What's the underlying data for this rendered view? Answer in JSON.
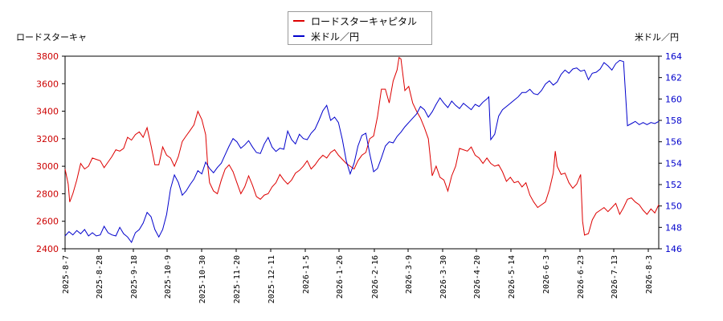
{
  "chart_data": {
    "type": "line",
    "left_axis_label": "ロードスターキャ",
    "right_axis_label": "米ドル／円",
    "x_tick_labels": [
      "2025-8-7",
      "2025-8-28",
      "2025-9-18",
      "2025-10-9",
      "2025-10-30",
      "2025-11-20",
      "2025-12-11",
      "2026-1-5",
      "2026-1-26",
      "2026-2-16",
      "2026-3-9",
      "2026-3-30",
      "2026-4-20",
      "2026-5-14",
      "2026-6-3",
      "2026-6-23",
      "2026-7-13",
      "2026-8-3"
    ],
    "y_left": {
      "min": 2400,
      "max": 3800,
      "ticks": [
        2400,
        2600,
        2800,
        3000,
        3200,
        3400,
        3600,
        3800
      ]
    },
    "y_right": {
      "min": 146,
      "max": 164,
      "ticks": [
        146,
        148,
        150,
        152,
        154,
        156,
        158,
        160,
        162,
        164
      ]
    },
    "legend_placement": "top-center",
    "grid": false,
    "series": [
      {
        "name": "ロードスターキャピタル",
        "axis": "left",
        "color": "#dd0000",
        "points": [
          [
            0,
            2980
          ],
          [
            0.8,
            2870
          ],
          [
            1.2,
            2740
          ],
          [
            2,
            2800
          ],
          [
            3,
            2900
          ],
          [
            4,
            3020
          ],
          [
            5,
            2980
          ],
          [
            6,
            3000
          ],
          [
            7,
            3060
          ],
          [
            8,
            3050
          ],
          [
            9,
            3040
          ],
          [
            10,
            2990
          ],
          [
            11,
            3030
          ],
          [
            12,
            3070
          ],
          [
            13,
            3120
          ],
          [
            14,
            3110
          ],
          [
            15,
            3130
          ],
          [
            16,
            3210
          ],
          [
            17,
            3190
          ],
          [
            18,
            3230
          ],
          [
            19,
            3250
          ],
          [
            20,
            3210
          ],
          [
            21,
            3280
          ],
          [
            22,
            3150
          ],
          [
            23,
            3010
          ],
          [
            24,
            3010
          ],
          [
            25,
            3140
          ],
          [
            26,
            3080
          ],
          [
            27,
            3060
          ],
          [
            28,
            3000
          ],
          [
            29,
            3070
          ],
          [
            30,
            3180
          ],
          [
            31,
            3220
          ],
          [
            32,
            3260
          ],
          [
            33,
            3300
          ],
          [
            34,
            3400
          ],
          [
            35,
            3340
          ],
          [
            36,
            3230
          ],
          [
            36.5,
            3010
          ],
          [
            37,
            2880
          ],
          [
            38,
            2820
          ],
          [
            39,
            2800
          ],
          [
            40,
            2900
          ],
          [
            41,
            2980
          ],
          [
            42,
            3010
          ],
          [
            43,
            2960
          ],
          [
            44,
            2880
          ],
          [
            45,
            2800
          ],
          [
            46,
            2850
          ],
          [
            47,
            2930
          ],
          [
            48,
            2860
          ],
          [
            49,
            2780
          ],
          [
            50,
            2760
          ],
          [
            51,
            2790
          ],
          [
            52,
            2800
          ],
          [
            53,
            2850
          ],
          [
            54,
            2880
          ],
          [
            55,
            2940
          ],
          [
            56,
            2900
          ],
          [
            57,
            2870
          ],
          [
            58,
            2900
          ],
          [
            59,
            2950
          ],
          [
            60,
            2970
          ],
          [
            61,
            3000
          ],
          [
            62,
            3040
          ],
          [
            63,
            2980
          ],
          [
            64,
            3010
          ],
          [
            65,
            3050
          ],
          [
            66,
            3080
          ],
          [
            67,
            3060
          ],
          [
            68,
            3100
          ],
          [
            69,
            3120
          ],
          [
            70,
            3080
          ],
          [
            71,
            3050
          ],
          [
            72,
            3020
          ],
          [
            73,
            3000
          ],
          [
            74,
            2980
          ],
          [
            75,
            3040
          ],
          [
            76,
            3080
          ],
          [
            77,
            3100
          ],
          [
            78,
            3200
          ],
          [
            79,
            3220
          ],
          [
            80,
            3360
          ],
          [
            81,
            3560
          ],
          [
            82,
            3560
          ],
          [
            83,
            3460
          ],
          [
            84,
            3620
          ],
          [
            85,
            3700
          ],
          [
            85.5,
            3790
          ],
          [
            86,
            3780
          ],
          [
            87,
            3550
          ],
          [
            88,
            3580
          ],
          [
            89,
            3460
          ],
          [
            90,
            3400
          ],
          [
            91,
            3350
          ],
          [
            92,
            3280
          ],
          [
            93,
            3200
          ],
          [
            94,
            2930
          ],
          [
            95,
            3000
          ],
          [
            96,
            2920
          ],
          [
            97,
            2900
          ],
          [
            98,
            2820
          ],
          [
            99,
            2930
          ],
          [
            100,
            3000
          ],
          [
            101,
            3130
          ],
          [
            102,
            3120
          ],
          [
            103,
            3110
          ],
          [
            104,
            3140
          ],
          [
            105,
            3080
          ],
          [
            106,
            3060
          ],
          [
            107,
            3020
          ],
          [
            108,
            3060
          ],
          [
            109,
            3020
          ],
          [
            110,
            3000
          ],
          [
            111,
            3010
          ],
          [
            112,
            2960
          ],
          [
            113,
            2890
          ],
          [
            114,
            2920
          ],
          [
            115,
            2880
          ],
          [
            116,
            2890
          ],
          [
            117,
            2850
          ],
          [
            118,
            2880
          ],
          [
            119,
            2790
          ],
          [
            120,
            2740
          ],
          [
            121,
            2700
          ],
          [
            122,
            2720
          ],
          [
            123,
            2740
          ],
          [
            124,
            2830
          ],
          [
            125,
            2950
          ],
          [
            125.5,
            3110
          ],
          [
            126,
            3000
          ],
          [
            127,
            2940
          ],
          [
            128,
            2950
          ],
          [
            129,
            2880
          ],
          [
            130,
            2840
          ],
          [
            131,
            2870
          ],
          [
            132,
            2940
          ],
          [
            132.5,
            2600
          ],
          [
            133,
            2500
          ],
          [
            134,
            2510
          ],
          [
            135,
            2610
          ],
          [
            136,
            2660
          ],
          [
            137,
            2680
          ],
          [
            138,
            2700
          ],
          [
            139,
            2670
          ],
          [
            140,
            2700
          ],
          [
            141,
            2730
          ],
          [
            142,
            2650
          ],
          [
            143,
            2700
          ],
          [
            144,
            2760
          ],
          [
            145,
            2770
          ],
          [
            146,
            2740
          ],
          [
            147,
            2720
          ],
          [
            148,
            2680
          ],
          [
            149,
            2650
          ],
          [
            150,
            2690
          ],
          [
            151,
            2660
          ],
          [
            152,
            2720
          ]
        ]
      },
      {
        "name": "米ドル／円",
        "axis": "right",
        "color": "#0000cc",
        "points": [
          [
            0,
            147.2
          ],
          [
            1,
            147.6
          ],
          [
            2,
            147.3
          ],
          [
            3,
            147.7
          ],
          [
            4,
            147.4
          ],
          [
            5,
            147.8
          ],
          [
            6,
            147.2
          ],
          [
            7,
            147.5
          ],
          [
            8,
            147.2
          ],
          [
            9,
            147.3
          ],
          [
            10,
            148.1
          ],
          [
            11,
            147.5
          ],
          [
            12,
            147.3
          ],
          [
            13,
            147.2
          ],
          [
            14,
            148.0
          ],
          [
            15,
            147.4
          ],
          [
            16,
            147.1
          ],
          [
            17,
            146.6
          ],
          [
            18,
            147.5
          ],
          [
            19,
            147.8
          ],
          [
            20,
            148.4
          ],
          [
            21,
            149.4
          ],
          [
            22,
            149.0
          ],
          [
            23,
            147.8
          ],
          [
            24,
            147.1
          ],
          [
            25,
            147.8
          ],
          [
            26,
            149.2
          ],
          [
            27,
            151.6
          ],
          [
            28,
            152.9
          ],
          [
            29,
            152.2
          ],
          [
            30,
            151.0
          ],
          [
            31,
            151.4
          ],
          [
            32,
            152.0
          ],
          [
            33,
            152.5
          ],
          [
            34,
            153.3
          ],
          [
            35,
            153.0
          ],
          [
            36,
            154.1
          ],
          [
            37,
            153.5
          ],
          [
            38,
            153.1
          ],
          [
            39,
            153.6
          ],
          [
            40,
            154.0
          ],
          [
            41,
            154.8
          ],
          [
            42,
            155.6
          ],
          [
            43,
            156.3
          ],
          [
            44,
            156.0
          ],
          [
            45,
            155.4
          ],
          [
            46,
            155.7
          ],
          [
            47,
            156.1
          ],
          [
            48,
            155.5
          ],
          [
            49,
            155.0
          ],
          [
            50,
            154.9
          ],
          [
            51,
            155.8
          ],
          [
            52,
            156.4
          ],
          [
            53,
            155.5
          ],
          [
            54,
            155.1
          ],
          [
            55,
            155.4
          ],
          [
            56,
            155.3
          ],
          [
            57,
            157.0
          ],
          [
            58,
            156.2
          ],
          [
            59,
            155.8
          ],
          [
            60,
            156.7
          ],
          [
            61,
            156.3
          ],
          [
            62,
            156.2
          ],
          [
            63,
            156.8
          ],
          [
            64,
            157.2
          ],
          [
            65,
            158.0
          ],
          [
            66,
            158.9
          ],
          [
            67,
            159.4
          ],
          [
            68,
            158.0
          ],
          [
            69,
            158.3
          ],
          [
            70,
            157.8
          ],
          [
            71,
            156.2
          ],
          [
            72,
            154.2
          ],
          [
            73,
            153.0
          ],
          [
            74,
            154.0
          ],
          [
            75,
            155.6
          ],
          [
            76,
            156.6
          ],
          [
            77,
            156.8
          ],
          [
            78,
            154.9
          ],
          [
            79,
            153.2
          ],
          [
            80,
            153.5
          ],
          [
            81,
            154.5
          ],
          [
            82,
            155.6
          ],
          [
            83,
            156.0
          ],
          [
            84,
            155.9
          ],
          [
            85,
            156.5
          ],
          [
            86,
            156.9
          ],
          [
            87,
            157.4
          ],
          [
            88,
            157.8
          ],
          [
            89,
            158.2
          ],
          [
            90,
            158.6
          ],
          [
            91,
            159.3
          ],
          [
            92,
            159.0
          ],
          [
            93,
            158.3
          ],
          [
            94,
            158.8
          ],
          [
            95,
            159.5
          ],
          [
            96,
            160.1
          ],
          [
            97,
            159.6
          ],
          [
            98,
            159.2
          ],
          [
            99,
            159.8
          ],
          [
            100,
            159.4
          ],
          [
            101,
            159.1
          ],
          [
            102,
            159.6
          ],
          [
            103,
            159.3
          ],
          [
            104,
            159.0
          ],
          [
            105,
            159.5
          ],
          [
            106,
            159.3
          ],
          [
            107,
            159.7
          ],
          [
            108,
            160.0
          ],
          [
            108.5,
            160.2
          ],
          [
            109,
            156.2
          ],
          [
            110,
            156.7
          ],
          [
            111,
            158.4
          ],
          [
            112,
            159.0
          ],
          [
            113,
            159.3
          ],
          [
            114,
            159.6
          ],
          [
            115,
            159.9
          ],
          [
            116,
            160.2
          ],
          [
            117,
            160.6
          ],
          [
            118,
            160.6
          ],
          [
            119,
            160.9
          ],
          [
            120,
            160.5
          ],
          [
            121,
            160.4
          ],
          [
            122,
            160.8
          ],
          [
            123,
            161.4
          ],
          [
            124,
            161.7
          ],
          [
            125,
            161.3
          ],
          [
            126,
            161.6
          ],
          [
            127,
            162.3
          ],
          [
            128,
            162.7
          ],
          [
            129,
            162.4
          ],
          [
            130,
            162.8
          ],
          [
            131,
            162.9
          ],
          [
            132,
            162.6
          ],
          [
            133,
            162.7
          ],
          [
            134,
            161.8
          ],
          [
            135,
            162.4
          ],
          [
            136,
            162.5
          ],
          [
            137,
            162.8
          ],
          [
            138,
            163.4
          ],
          [
            139,
            163.1
          ],
          [
            140,
            162.7
          ],
          [
            141,
            163.3
          ],
          [
            142,
            163.6
          ],
          [
            143,
            163.5
          ],
          [
            144,
            157.5
          ],
          [
            145,
            157.7
          ],
          [
            146,
            157.9
          ],
          [
            147,
            157.6
          ],
          [
            148,
            157.8
          ],
          [
            149,
            157.6
          ],
          [
            150,
            157.8
          ],
          [
            151,
            157.7
          ],
          [
            152,
            157.9
          ]
        ]
      }
    ]
  }
}
